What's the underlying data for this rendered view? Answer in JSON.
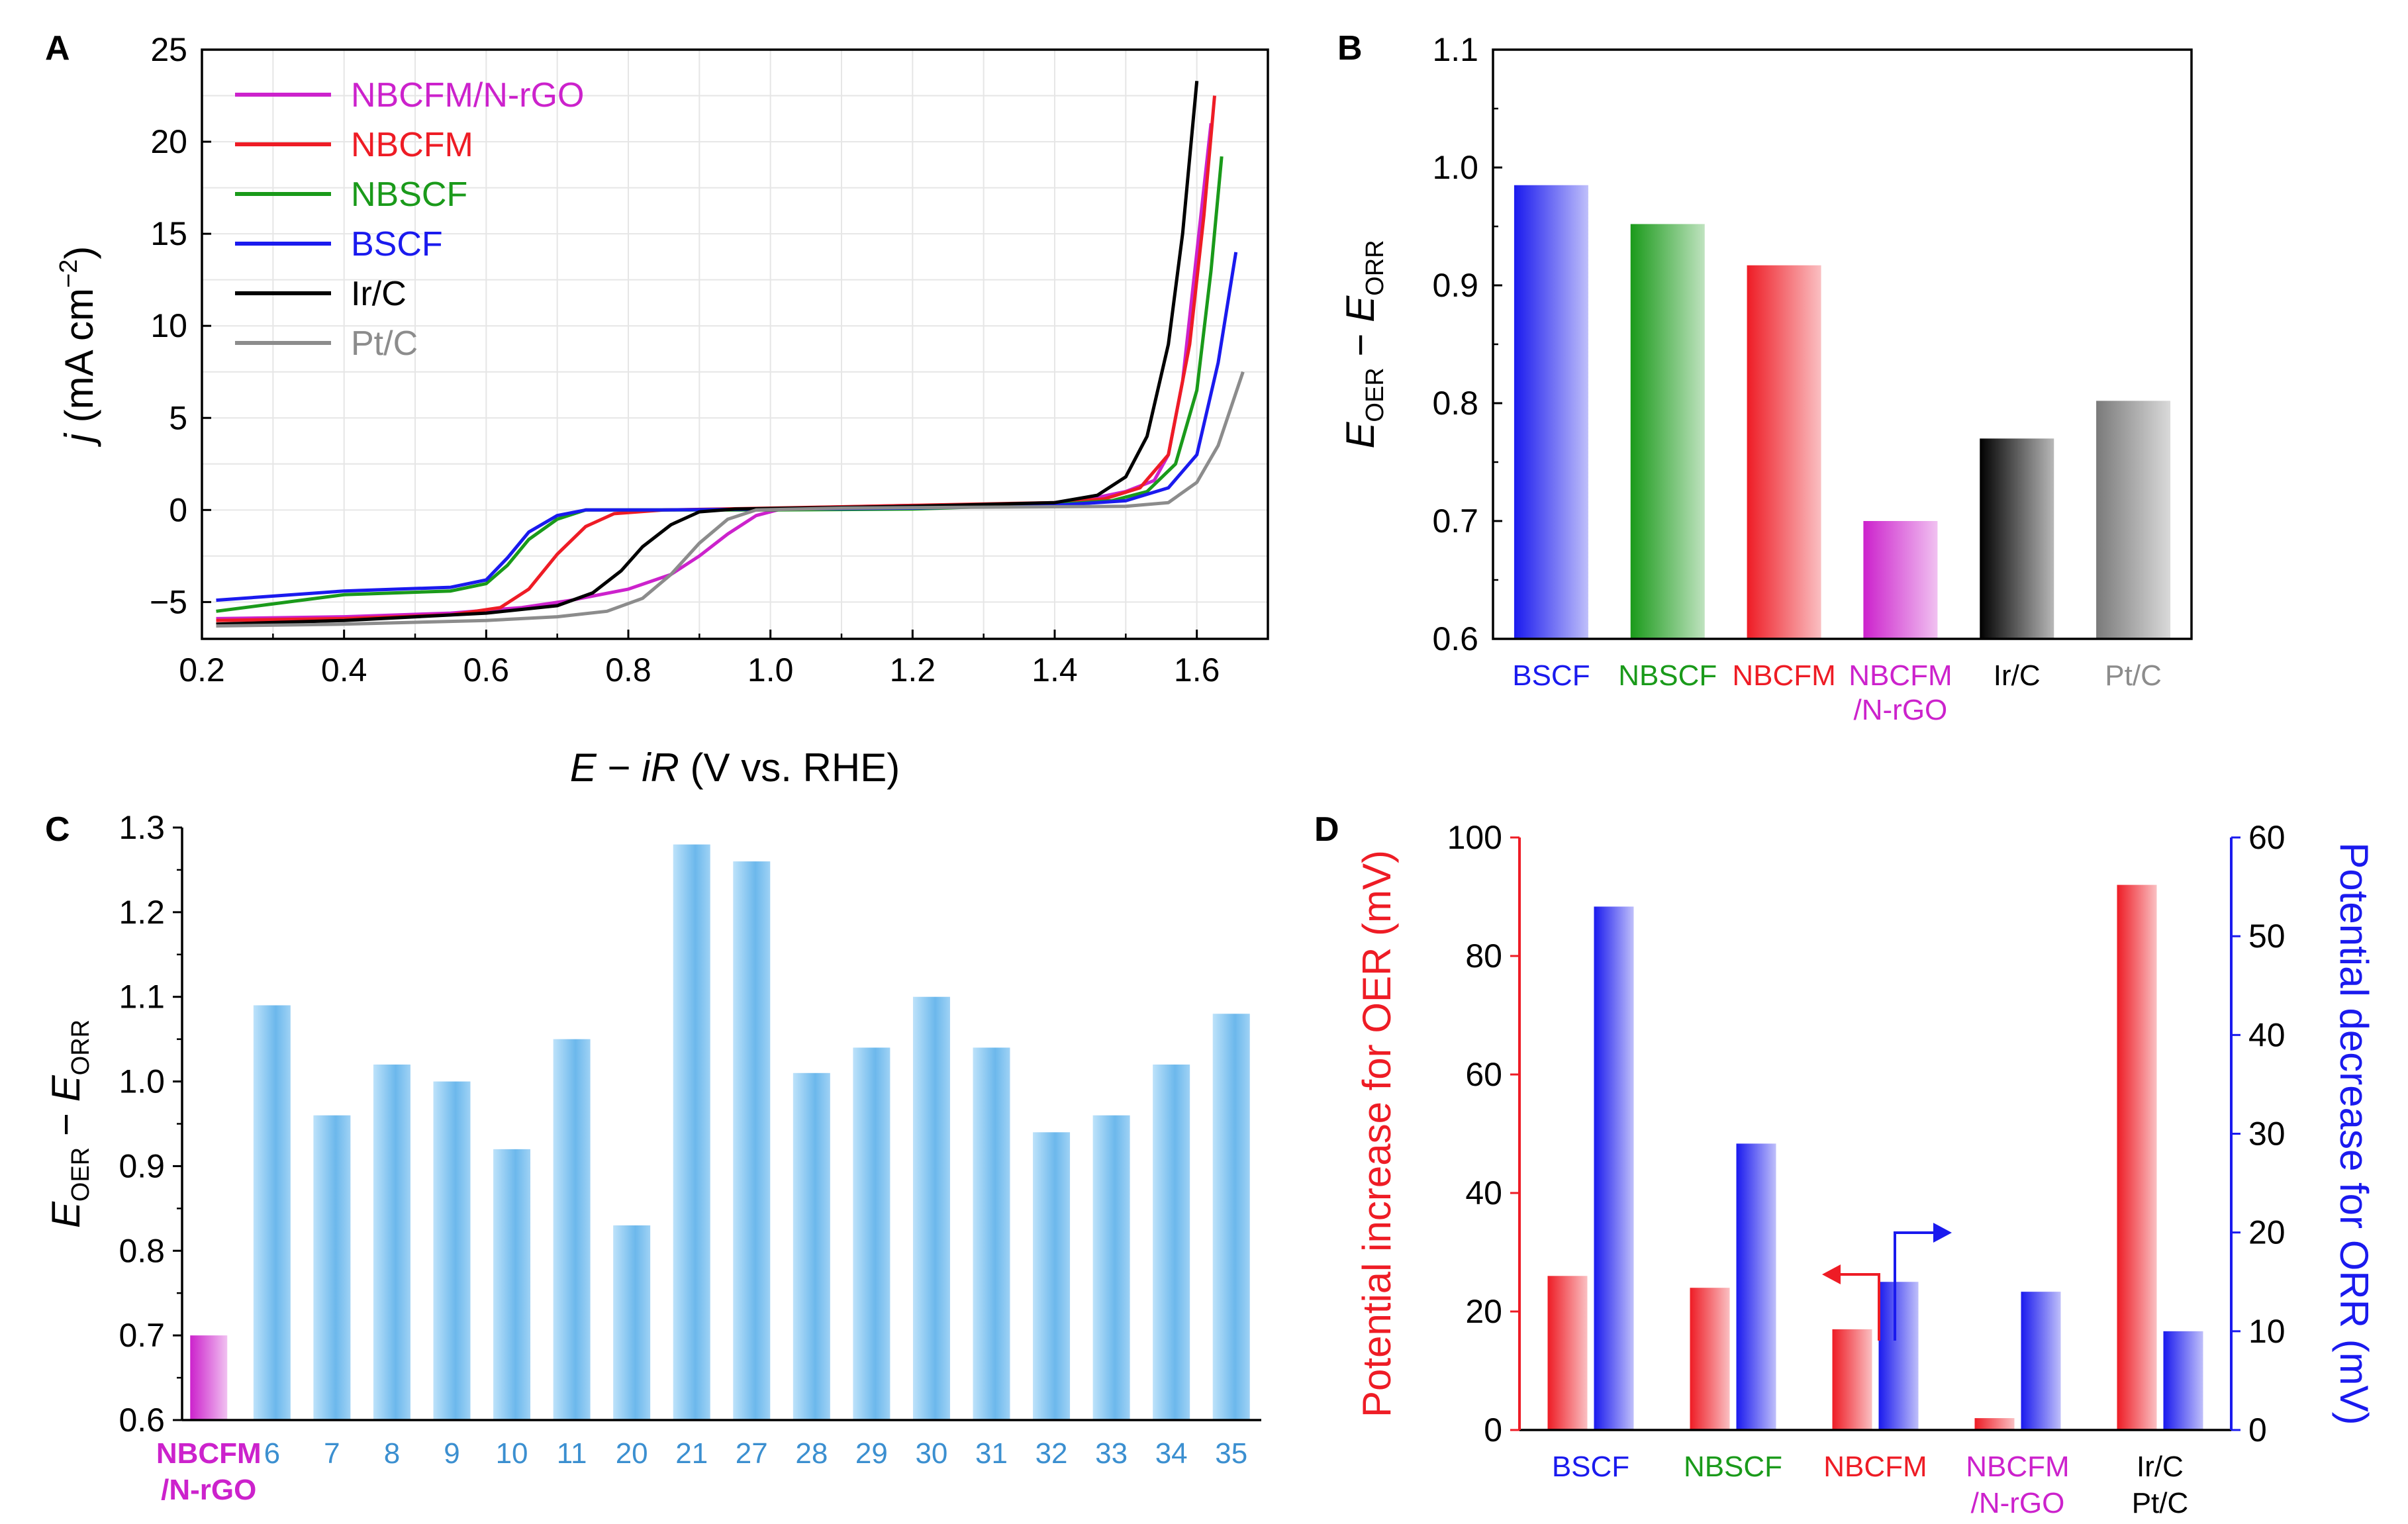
{
  "colors": {
    "NBCFM/N-rGO": "#cc22cc",
    "NBCFM": "#ee1c25",
    "NBSCF": "#1a9a1a",
    "BSCF": "#1a1aee",
    "Ir/C": "#000000",
    "Pt/C": "#8c8c8c",
    "ref": "#5aaee6",
    "refLabel": "#3b8fd0"
  },
  "chart_data": [
    {
      "panel": "A",
      "type": "line",
      "xlabel": {
        "i1": "E",
        "m1": " − ",
        "i2": "iR",
        "rest": " (V vs. RHE)"
      },
      "ylabel": {
        "i1": "j",
        "rest": " (mA cm",
        "sup": "−2",
        "close": ")"
      },
      "xlim": [
        0.2,
        1.7
      ],
      "ylim": [
        -7,
        25
      ],
      "xticks": [
        "0.2",
        "0.4",
        "0.6",
        "0.8",
        "1.0",
        "1.2",
        "1.4",
        "1.6"
      ],
      "yticks": [
        "−5",
        "0",
        "5",
        "10",
        "15",
        "20",
        "25"
      ],
      "grid": true,
      "legend_position": "top-left",
      "series": [
        {
          "name": "NBCFM/N-rGO",
          "points": [
            [
              0.22,
              -5.9
            ],
            [
              0.4,
              -5.8
            ],
            [
              0.55,
              -5.6
            ],
            [
              0.65,
              -5.3
            ],
            [
              0.72,
              -4.9
            ],
            [
              0.8,
              -4.3
            ],
            [
              0.86,
              -3.5
            ],
            [
              0.9,
              -2.5
            ],
            [
              0.94,
              -1.3
            ],
            [
              0.98,
              -0.3
            ],
            [
              1.02,
              0.1
            ],
            [
              1.2,
              0.25
            ],
            [
              1.3,
              0.2
            ],
            [
              1.4,
              0.4
            ],
            [
              1.45,
              0.6
            ],
            [
              1.5,
              1.0
            ],
            [
              1.54,
              1.6
            ],
            [
              1.56,
              3.0
            ],
            [
              1.58,
              7.0
            ],
            [
              1.6,
              14.0
            ],
            [
              1.62,
              21.0
            ]
          ]
        },
        {
          "name": "NBCFM",
          "points": [
            [
              0.22,
              -6.0
            ],
            [
              0.4,
              -5.9
            ],
            [
              0.55,
              -5.7
            ],
            [
              0.62,
              -5.3
            ],
            [
              0.66,
              -4.3
            ],
            [
              0.7,
              -2.4
            ],
            [
              0.74,
              -0.9
            ],
            [
              0.78,
              -0.2
            ],
            [
              0.85,
              0.0
            ],
            [
              1.0,
              0.1
            ],
            [
              1.2,
              0.25
            ],
            [
              1.4,
              0.4
            ],
            [
              1.47,
              0.6
            ],
            [
              1.52,
              1.2
            ],
            [
              1.56,
              3.0
            ],
            [
              1.59,
              9.0
            ],
            [
              1.61,
              16.0
            ],
            [
              1.625,
              22.5
            ]
          ]
        },
        {
          "name": "NBSCF",
          "points": [
            [
              0.22,
              -5.5
            ],
            [
              0.4,
              -4.6
            ],
            [
              0.55,
              -4.4
            ],
            [
              0.6,
              -4.0
            ],
            [
              0.63,
              -3.0
            ],
            [
              0.66,
              -1.6
            ],
            [
              0.7,
              -0.5
            ],
            [
              0.74,
              0.0
            ],
            [
              0.85,
              0.0
            ],
            [
              1.0,
              0.0
            ],
            [
              1.2,
              0.05
            ],
            [
              1.4,
              0.3
            ],
            [
              1.48,
              0.5
            ],
            [
              1.53,
              1.0
            ],
            [
              1.57,
              2.5
            ],
            [
              1.6,
              6.5
            ],
            [
              1.62,
              13.0
            ],
            [
              1.635,
              19.2
            ]
          ]
        },
        {
          "name": "BSCF",
          "points": [
            [
              0.22,
              -4.9
            ],
            [
              0.4,
              -4.4
            ],
            [
              0.55,
              -4.2
            ],
            [
              0.6,
              -3.8
            ],
            [
              0.63,
              -2.6
            ],
            [
              0.66,
              -1.2
            ],
            [
              0.7,
              -0.3
            ],
            [
              0.74,
              0.0
            ],
            [
              0.85,
              0.0
            ],
            [
              1.0,
              0.05
            ],
            [
              1.2,
              0.1
            ],
            [
              1.4,
              0.25
            ],
            [
              1.5,
              0.5
            ],
            [
              1.56,
              1.2
            ],
            [
              1.6,
              3.0
            ],
            [
              1.63,
              8.0
            ],
            [
              1.655,
              14.0
            ]
          ]
        },
        {
          "name": "Ir/C",
          "points": [
            [
              0.22,
              -6.2
            ],
            [
              0.4,
              -6.0
            ],
            [
              0.6,
              -5.6
            ],
            [
              0.7,
              -5.2
            ],
            [
              0.75,
              -4.5
            ],
            [
              0.79,
              -3.3
            ],
            [
              0.82,
              -2.0
            ],
            [
              0.86,
              -0.8
            ],
            [
              0.9,
              -0.1
            ],
            [
              0.95,
              0.05
            ],
            [
              1.2,
              0.2
            ],
            [
              1.4,
              0.4
            ],
            [
              1.46,
              0.8
            ],
            [
              1.5,
              1.8
            ],
            [
              1.53,
              4.0
            ],
            [
              1.56,
              9.0
            ],
            [
              1.58,
              15.0
            ],
            [
              1.6,
              23.3
            ]
          ]
        },
        {
          "name": "Pt/C",
          "points": [
            [
              0.22,
              -6.3
            ],
            [
              0.4,
              -6.2
            ],
            [
              0.6,
              -6.0
            ],
            [
              0.7,
              -5.8
            ],
            [
              0.77,
              -5.5
            ],
            [
              0.82,
              -4.8
            ],
            [
              0.86,
              -3.5
            ],
            [
              0.9,
              -1.8
            ],
            [
              0.94,
              -0.5
            ],
            [
              0.98,
              0.0
            ],
            [
              1.1,
              0.1
            ],
            [
              1.3,
              0.15
            ],
            [
              1.5,
              0.2
            ],
            [
              1.56,
              0.4
            ],
            [
              1.6,
              1.5
            ],
            [
              1.63,
              3.5
            ],
            [
              1.665,
              7.5
            ]
          ]
        }
      ]
    },
    {
      "panel": "B",
      "type": "bar",
      "ylabel": {
        "e1": "E",
        "s1": "OER",
        "minus": " − ",
        "e2": "E",
        "s2": "ORR"
      },
      "ylim": [
        0.6,
        1.1
      ],
      "yticks": [
        "0.6",
        "0.7",
        "0.8",
        "0.9",
        "1.0",
        "1.1"
      ],
      "categories": [
        [
          "BSCF"
        ],
        [
          "NBSCF"
        ],
        [
          "NBCFM"
        ],
        [
          "NBCFM",
          "/N-rGO"
        ],
        [
          "Ir/C"
        ],
        [
          "Pt/C"
        ]
      ],
      "values": [
        0.985,
        0.952,
        0.917,
        0.7,
        0.77,
        0.802
      ]
    },
    {
      "panel": "C",
      "type": "bar",
      "ylabel": {
        "e1": "E",
        "s1": "OER",
        "minus": " − ",
        "e2": "E",
        "s2": "ORR"
      },
      "ylim": [
        0.6,
        1.3
      ],
      "yticks": [
        "0.6",
        "0.7",
        "0.8",
        "0.9",
        "1.0",
        "1.1",
        "1.2",
        "1.3"
      ],
      "categories": [
        [
          "NBCFM",
          "/N-rGO"
        ],
        [
          "6"
        ],
        [
          "7"
        ],
        [
          "8"
        ],
        [
          "9"
        ],
        [
          "10"
        ],
        [
          "11"
        ],
        [
          "20"
        ],
        [
          "21"
        ],
        [
          "27"
        ],
        [
          "28"
        ],
        [
          "29"
        ],
        [
          "30"
        ],
        [
          "31"
        ],
        [
          "32"
        ],
        [
          "33"
        ],
        [
          "34"
        ],
        [
          "35"
        ]
      ],
      "values": [
        0.7,
        1.09,
        0.96,
        1.02,
        1.0,
        0.92,
        1.05,
        0.83,
        1.28,
        1.26,
        1.01,
        1.04,
        1.1,
        1.04,
        0.94,
        0.96,
        1.02,
        1.08
      ]
    },
    {
      "panel": "D",
      "type": "bar",
      "ylabel_left": "Potential increase for OER (mV)",
      "ylabel_right": "Potential decrease for ORR (mV)",
      "ylim_left": [
        0,
        100
      ],
      "ylim_right": [
        0,
        60
      ],
      "yticks_left": [
        "0",
        "20",
        "40",
        "60",
        "80",
        "100"
      ],
      "yticks_right": [
        "0",
        "10",
        "20",
        "30",
        "40",
        "50",
        "60"
      ],
      "categories": [
        [
          "BSCF"
        ],
        [
          "NBSCF"
        ],
        [
          "NBCFM"
        ],
        [
          "NBCFM",
          "/N-rGO"
        ],
        [
          "Ir/C",
          "Pt/C"
        ]
      ],
      "series": [
        {
          "name": "Potential increase for OER",
          "axis": "left",
          "values": [
            26,
            24,
            17,
            2,
            92
          ]
        },
        {
          "name": "Potential decrease for ORR",
          "axis": "right",
          "values": [
            53,
            29,
            15,
            14,
            10
          ]
        }
      ]
    }
  ],
  "panel_labels": [
    "A",
    "B",
    "C",
    "D"
  ]
}
